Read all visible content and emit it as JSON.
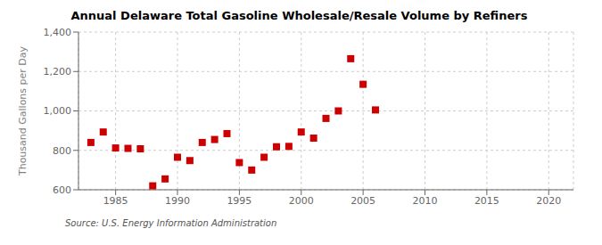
{
  "chart_data": {
    "type": "scatter",
    "title": "Annual Delaware Total Gasoline Wholesale/Resale Volume by Refiners",
    "y_label": "Thousand Gallons per Day",
    "annotation": "Source: U.S. Energy Information Administration",
    "x": [
      1983,
      1984,
      1985,
      1986,
      1987,
      1988,
      1989,
      1990,
      1991,
      1992,
      1993,
      1994,
      1995,
      1996,
      1997,
      1998,
      1999,
      2000,
      2001,
      2002,
      2003,
      2004,
      2005,
      2006
    ],
    "values": [
      840,
      893,
      812,
      810,
      808,
      620,
      655,
      765,
      748,
      840,
      855,
      885,
      738,
      700,
      765,
      818,
      820,
      893,
      862,
      962,
      1000,
      1265,
      1135,
      1005
    ],
    "color": "#cc0000",
    "marker": "square",
    "xlim": [
      1982,
      2022
    ],
    "xticks": [
      1985,
      1990,
      1995,
      2000,
      2005,
      2010,
      2015,
      2020
    ],
    "ylim": [
      600,
      1400
    ],
    "yticks": [
      600,
      800,
      {
        "value": 1000,
        "label": "1,000"
      },
      {
        "value": 1200,
        "label": "1,200"
      },
      {
        "value": 1400,
        "label": "1,400"
      }
    ],
    "grid": true
  }
}
